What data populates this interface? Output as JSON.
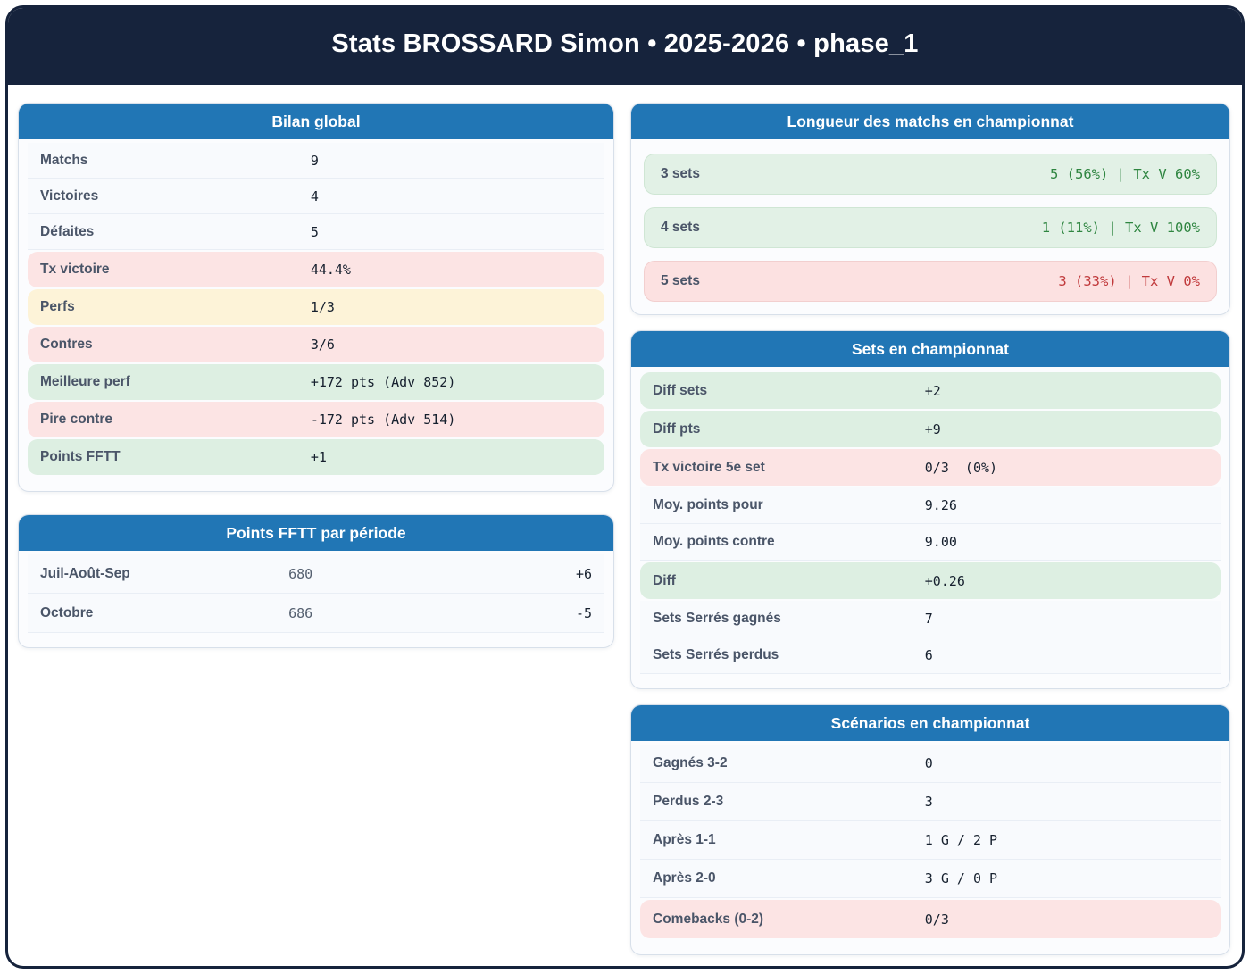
{
  "page": {
    "title": "Stats BROSSARD Simon • 2025-2026 • phase_1"
  },
  "colors": {
    "header_navy": "#16233c",
    "card_header_blue": "#2176b5",
    "green_bg": "#ddefe2",
    "pink_bg": "#fce4e4",
    "yellow_bg": "#fdf3d8",
    "green_text": "#2e8540",
    "red_text": "#c0393b"
  },
  "cards": {
    "bilan": {
      "title": "Bilan global",
      "rows": [
        {
          "label": "Matchs",
          "value": "9",
          "tone": "plain"
        },
        {
          "label": "Victoires",
          "value": "4",
          "tone": "plain"
        },
        {
          "label": "Défaites",
          "value": "5",
          "tone": "plain"
        },
        {
          "label": "Tx victoire",
          "value": "44.4%",
          "tone": "pink"
        },
        {
          "label": "Perfs",
          "value": "1/3",
          "tone": "yellow"
        },
        {
          "label": "Contres",
          "value": "3/6",
          "tone": "pink"
        },
        {
          "label": "Meilleure perf",
          "value": "+172 pts (Adv 852)",
          "tone": "green"
        },
        {
          "label": "Pire contre",
          "value": "-172 pts (Adv 514)",
          "tone": "pink"
        },
        {
          "label": "Points FFTT",
          "value": "+1",
          "tone": "green"
        }
      ]
    },
    "periode": {
      "title": "Points FFTT par période",
      "rows": [
        {
          "label": "Juil-Août-Sep",
          "points": "680",
          "delta": "+6"
        },
        {
          "label": "Octobre",
          "points": "686",
          "delta": "-5"
        }
      ]
    },
    "longueur": {
      "title": "Longueur des matchs en championnat",
      "rows": [
        {
          "label": "3 sets",
          "value": "5 (56%) | Tx V 60%",
          "tone": "green",
          "value_color": "green"
        },
        {
          "label": "4 sets",
          "value": "1 (11%) | Tx V 100%",
          "tone": "green",
          "value_color": "green"
        },
        {
          "label": "5 sets",
          "value": "3 (33%) | Tx V 0%",
          "tone": "pink",
          "value_color": "red"
        }
      ]
    },
    "sets": {
      "title": "Sets en championnat",
      "rows": [
        {
          "label": "Diff sets",
          "value": "+2",
          "tone": "green"
        },
        {
          "label": "Diff pts",
          "value": "+9",
          "tone": "green"
        },
        {
          "label": "Tx victoire 5e set",
          "value": "0/3  (0%)",
          "tone": "pink"
        },
        {
          "label": "Moy. points pour",
          "value": "9.26",
          "tone": "plain"
        },
        {
          "label": "Moy. points contre",
          "value": "9.00",
          "tone": "plain"
        },
        {
          "label": "Diff",
          "value": "+0.26",
          "tone": "green"
        },
        {
          "label": "Sets Serrés gagnés",
          "value": "7",
          "tone": "plain"
        },
        {
          "label": "Sets Serrés perdus",
          "value": "6",
          "tone": "plain"
        }
      ]
    },
    "scenarios": {
      "title": "Scénarios en championnat",
      "rows": [
        {
          "label": "Gagnés 3-2",
          "value": "0",
          "tone": "plain"
        },
        {
          "label": "Perdus 2-3",
          "value": "3",
          "tone": "plain"
        },
        {
          "label": "Après 1-1",
          "value": "1 G / 2 P",
          "tone": "plain"
        },
        {
          "label": "Après 2-0",
          "value": "3 G / 0 P",
          "tone": "plain"
        },
        {
          "label": "Comebacks (0-2)",
          "value": "0/3",
          "tone": "pink"
        }
      ]
    }
  }
}
